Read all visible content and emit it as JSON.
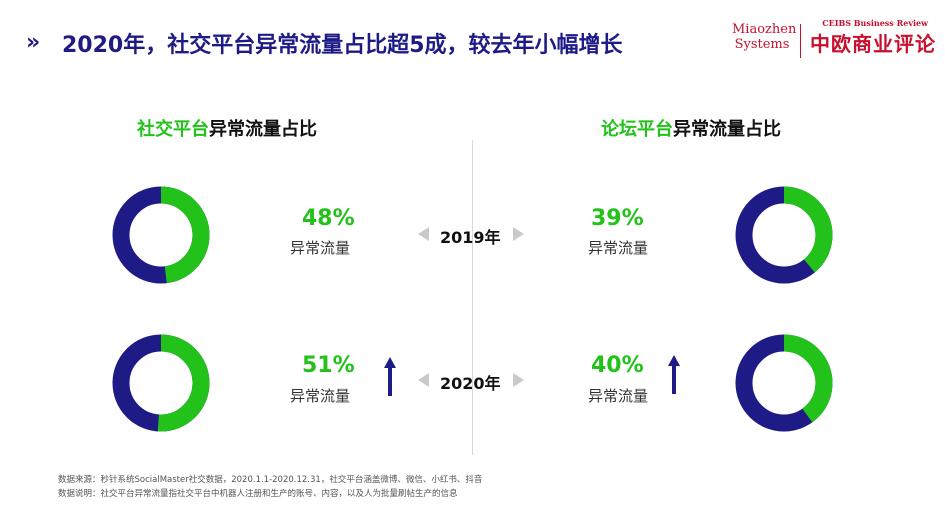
{
  "header": {
    "chevrons": "»",
    "title": "2020年，社交平台异常流量占比超5成，较去年小幅增长"
  },
  "logo": {
    "brand_line1": "Miaozhen",
    "brand_line2": "Systems",
    "ceibs_en": "CEIBS Business Review",
    "ceibs_cn": "中欧商业评论"
  },
  "sections": {
    "left": {
      "title_accent": "社交平台",
      "title_rest": "异常流量占比"
    },
    "right": {
      "title_accent": "论坛平台",
      "title_rest": "异常流量占比"
    }
  },
  "years": {
    "y2019": "2019年",
    "y2020": "2020年"
  },
  "metric_label": "异常流量",
  "colors": {
    "abnormal": "#22c21a",
    "normal": "#1e1b86",
    "title": "#1e1b86",
    "logo": "#c8102e"
  },
  "chart_data": [
    {
      "type": "pie",
      "platform": "社交平台",
      "year": "2019年",
      "abnormal_pct": 48,
      "label": "48%",
      "categories": [
        "异常流量",
        ""
      ],
      "values": [
        48,
        52
      ]
    },
    {
      "type": "pie",
      "platform": "社交平台",
      "year": "2020年",
      "abnormal_pct": 51,
      "label": "51%",
      "categories": [
        "异常流量",
        ""
      ],
      "values": [
        51,
        49
      ],
      "trend": "up"
    },
    {
      "type": "pie",
      "platform": "论坛平台",
      "year": "2019年",
      "abnormal_pct": 39,
      "label": "39%",
      "categories": [
        "异常流量",
        ""
      ],
      "values": [
        39,
        61
      ]
    },
    {
      "type": "pie",
      "platform": "论坛平台",
      "year": "2020年",
      "abnormal_pct": 40,
      "label": "40%",
      "categories": [
        "异常流量",
        ""
      ],
      "values": [
        40,
        60
      ],
      "trend": "up"
    }
  ],
  "footnotes": {
    "source": "数据来源：秒针系统SocialMaster社交数据，2020.1.1-2020.12.31，社交平台涵盖微博、微信、小红书、抖音",
    "explanation": "数据说明：社交平台异常流量指社交平台中机器人注册和生产的账号、内容，以及人为批量刷帖生产的信息"
  }
}
